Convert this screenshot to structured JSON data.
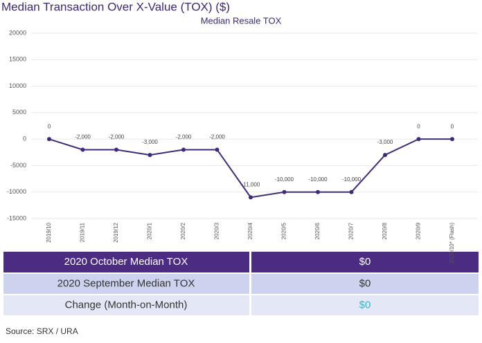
{
  "chart_data": {
    "type": "line",
    "title": "Median Transaction Over X-Value (TOX) ($)",
    "subtitle": "Median Resale TOX",
    "categories": [
      "2019/10",
      "2019/11",
      "2019/12",
      "2020/1",
      "2020/2",
      "2020/3",
      "2020/4",
      "2020/5",
      "2020/6",
      "2020/7",
      "2020/8",
      "2020/9",
      "2020/10* (Flash)"
    ],
    "values": [
      0,
      -2000,
      -2000,
      -3000,
      -2000,
      -2000,
      -11000,
      -10000,
      -10000,
      -10000,
      -3000,
      0,
      0
    ],
    "value_labels": [
      "0",
      "-2,000",
      "-2,000",
      "-3,000",
      "-2,000",
      "-2,000",
      "-11,000",
      "-10,000",
      "-10,000",
      "-10,000",
      "-3,000",
      "0",
      "0"
    ],
    "color": "#3f2a78",
    "ylim": [
      -15000,
      20000
    ],
    "yticks": [
      -15000,
      -10000,
      -5000,
      0,
      5000,
      10000,
      15000,
      20000
    ],
    "grid": true
  },
  "table": {
    "rows": [
      [
        "2020 October Median TOX",
        "$0"
      ],
      [
        "2020 September Median TOX",
        "$0"
      ],
      [
        "Change (Month-on-Month)",
        "$0"
      ]
    ]
  },
  "source": "Source: SRX / URA"
}
